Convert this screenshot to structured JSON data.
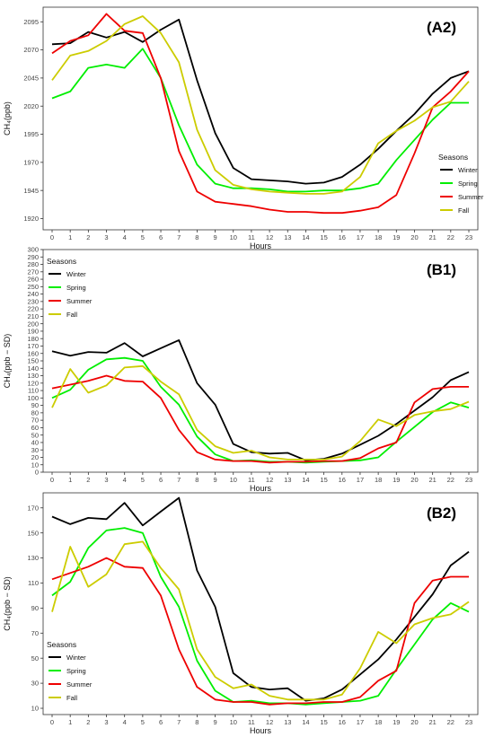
{
  "chart_data": [
    {
      "type": "line",
      "panel_label": "(A2)",
      "xlabel": "Hours",
      "ylabel": "CH₄(ppb)",
      "x": [
        0,
        1,
        2,
        3,
        4,
        5,
        6,
        7,
        8,
        9,
        10,
        11,
        12,
        13,
        14,
        15,
        16,
        17,
        18,
        19,
        20,
        21,
        22,
        23
      ],
      "xlim": [
        0,
        23
      ],
      "ylim": [
        1910,
        2108
      ],
      "yticks": [
        1920,
        1945,
        1970,
        1995,
        2020,
        2045,
        2070,
        2095
      ],
      "legend": {
        "title": "Seasons",
        "position": "right"
      },
      "series": [
        {
          "name": "Winter",
          "color": "#000000",
          "values": [
            2075,
            2076,
            2086,
            2081,
            2086,
            2077,
            2088,
            2097,
            2043,
            1996,
            1965,
            1955,
            1954,
            1953,
            1951,
            1952,
            1957,
            1968,
            1982,
            1998,
            2013,
            2031,
            2045,
            2051
          ]
        },
        {
          "name": "Spring",
          "color": "#00ee00",
          "values": [
            2027,
            2033,
            2054,
            2057,
            2054,
            2071,
            2045,
            2003,
            1968,
            1951,
            1947,
            1947,
            1946,
            1944,
            1944,
            1945,
            1945,
            1947,
            1951,
            1972,
            1990,
            2008,
            2023,
            2023
          ]
        },
        {
          "name": "Summer",
          "color": "#ee0000",
          "values": [
            2067,
            2078,
            2083,
            2102,
            2087,
            2085,
            2045,
            1980,
            1944,
            1935,
            1933,
            1931,
            1928,
            1926,
            1926,
            1925,
            1925,
            1927,
            1930,
            1941,
            1978,
            2019,
            2033,
            2051
          ]
        },
        {
          "name": "Fall",
          "color": "#cccc00",
          "values": [
            2043,
            2065,
            2069,
            2078,
            2093,
            2100,
            2085,
            2059,
            1999,
            1963,
            1950,
            1946,
            1944,
            1943,
            1942,
            1942,
            1944,
            1957,
            1987,
            1998,
            2007,
            2019,
            2024,
            2042
          ]
        }
      ]
    },
    {
      "type": "line",
      "panel_label": "(B1)",
      "xlabel": "Hours",
      "ylabel": "CH₄(ppb − SD)",
      "x": [
        0,
        1,
        2,
        3,
        4,
        5,
        6,
        7,
        8,
        9,
        10,
        11,
        12,
        13,
        14,
        15,
        16,
        17,
        18,
        19,
        20,
        21,
        22,
        23
      ],
      "xlim": [
        0,
        23
      ],
      "ylim": [
        0,
        300
      ],
      "yticks": [
        0,
        10,
        20,
        30,
        40,
        50,
        60,
        70,
        80,
        90,
        100,
        110,
        120,
        130,
        140,
        150,
        160,
        170,
        180,
        190,
        200,
        210,
        220,
        230,
        240,
        250,
        260,
        270,
        280,
        290,
        300
      ],
      "legend": {
        "title": "Seasons",
        "position": "top-left"
      },
      "series": [
        {
          "name": "Winter",
          "color": "#000000",
          "values": [
            163,
            157,
            162,
            161,
            174,
            156,
            167,
            178,
            120,
            91,
            38,
            27,
            25,
            26,
            16,
            18,
            25,
            37,
            49,
            65,
            83,
            101,
            124,
            135
          ]
        },
        {
          "name": "Spring",
          "color": "#00ee00",
          "values": [
            100,
            111,
            138,
            152,
            154,
            150,
            115,
            91,
            48,
            24,
            15,
            16,
            14,
            14,
            13,
            14,
            15,
            16,
            20,
            41,
            61,
            81,
            94,
            87
          ]
        },
        {
          "name": "Summer",
          "color": "#ee0000",
          "values": [
            113,
            118,
            123,
            130,
            123,
            122,
            100,
            57,
            27,
            17,
            15,
            15,
            13,
            14,
            14,
            15,
            15,
            19,
            32,
            40,
            94,
            112,
            115,
            115
          ]
        },
        {
          "name": "Fall",
          "color": "#cccc00",
          "values": [
            87,
            139,
            107,
            117,
            141,
            143,
            122,
            105,
            57,
            35,
            26,
            29,
            20,
            17,
            17,
            17,
            21,
            42,
            71,
            62,
            77,
            82,
            85,
            95
          ]
        }
      ]
    },
    {
      "type": "line",
      "panel_label": "(B2)",
      "xlabel": "Hours",
      "ylabel": "CH₄(ppb − SD)",
      "x": [
        0,
        1,
        2,
        3,
        4,
        5,
        6,
        7,
        8,
        9,
        10,
        11,
        12,
        13,
        14,
        15,
        16,
        17,
        18,
        19,
        20,
        21,
        22,
        23
      ],
      "xlim": [
        0,
        23
      ],
      "ylim": [
        5,
        182
      ],
      "yticks": [
        10,
        30,
        50,
        70,
        90,
        110,
        130,
        150,
        170
      ],
      "legend": {
        "title": "Seasons",
        "position": "bottom-left"
      },
      "series": [
        {
          "name": "Winter",
          "color": "#000000",
          "values": [
            163,
            157,
            162,
            161,
            174,
            156,
            167,
            178,
            120,
            91,
            38,
            27,
            25,
            26,
            16,
            18,
            25,
            37,
            49,
            65,
            83,
            101,
            124,
            135
          ]
        },
        {
          "name": "Spring",
          "color": "#00ee00",
          "values": [
            100,
            111,
            138,
            152,
            154,
            150,
            115,
            91,
            48,
            24,
            15,
            16,
            14,
            14,
            13,
            14,
            15,
            16,
            20,
            41,
            61,
            81,
            94,
            87
          ]
        },
        {
          "name": "Summer",
          "color": "#ee0000",
          "values": [
            113,
            118,
            123,
            130,
            123,
            122,
            100,
            57,
            27,
            17,
            15,
            15,
            13,
            14,
            14,
            15,
            15,
            19,
            32,
            40,
            94,
            112,
            115,
            115
          ]
        },
        {
          "name": "Fall",
          "color": "#cccc00",
          "values": [
            87,
            139,
            107,
            117,
            141,
            143,
            122,
            105,
            57,
            35,
            26,
            29,
            20,
            17,
            17,
            17,
            21,
            42,
            71,
            62,
            77,
            82,
            85,
            95
          ]
        }
      ]
    }
  ]
}
